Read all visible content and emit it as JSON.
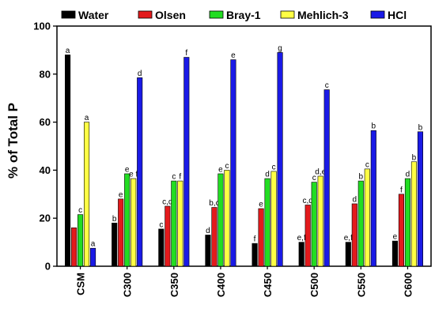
{
  "chart_data": {
    "type": "bar",
    "ylabel": "% of Total P",
    "ylim": [
      0,
      100
    ],
    "yticks": [
      0,
      20,
      40,
      60,
      80,
      100
    ],
    "grid": false,
    "legend_position": "top",
    "categories": [
      "CSM",
      "C300",
      "C350",
      "C400",
      "C450",
      "C500",
      "C550",
      "C600"
    ],
    "series": [
      {
        "name": "Water",
        "color": "#000000",
        "values": [
          88,
          18,
          15.5,
          13,
          9.5,
          10,
          10,
          10.5
        ],
        "labels": [
          "a",
          "b",
          "c",
          "d",
          "f",
          "e,f",
          "e,f",
          "e"
        ]
      },
      {
        "name": "Olsen",
        "color": "#e31a1c",
        "values": [
          16,
          28,
          25,
          24.5,
          24,
          25.5,
          26,
          30
        ],
        "labels": [
          "",
          "e",
          "c,d",
          "b,c",
          "e",
          "c,d",
          "d",
          "f"
        ]
      },
      {
        "name": "Bray-1",
        "color": "#22dd22",
        "values": [
          21.5,
          38.5,
          35.5,
          38.5,
          36.5,
          35,
          35.5,
          36.5
        ],
        "labels": [
          "c",
          "e",
          "c",
          "e",
          "d",
          "c",
          "b",
          "d"
        ]
      },
      {
        "name": "Mehlich-3",
        "color": "#ffff44",
        "values": [
          60,
          36.5,
          35.5,
          40,
          39.5,
          37.5,
          40.5,
          43.5
        ],
        "labels": [
          "a",
          "e f",
          "f",
          "c",
          "c",
          "d,e",
          "c",
          "b"
        ]
      },
      {
        "name": "HCl",
        "color": "#1a1ae6",
        "values": [
          7.5,
          78.5,
          87,
          86,
          89,
          73.5,
          56.5,
          56
        ],
        "labels": [
          "a",
          "d",
          "f",
          "e",
          "g",
          "c",
          "b",
          "b"
        ]
      }
    ]
  }
}
